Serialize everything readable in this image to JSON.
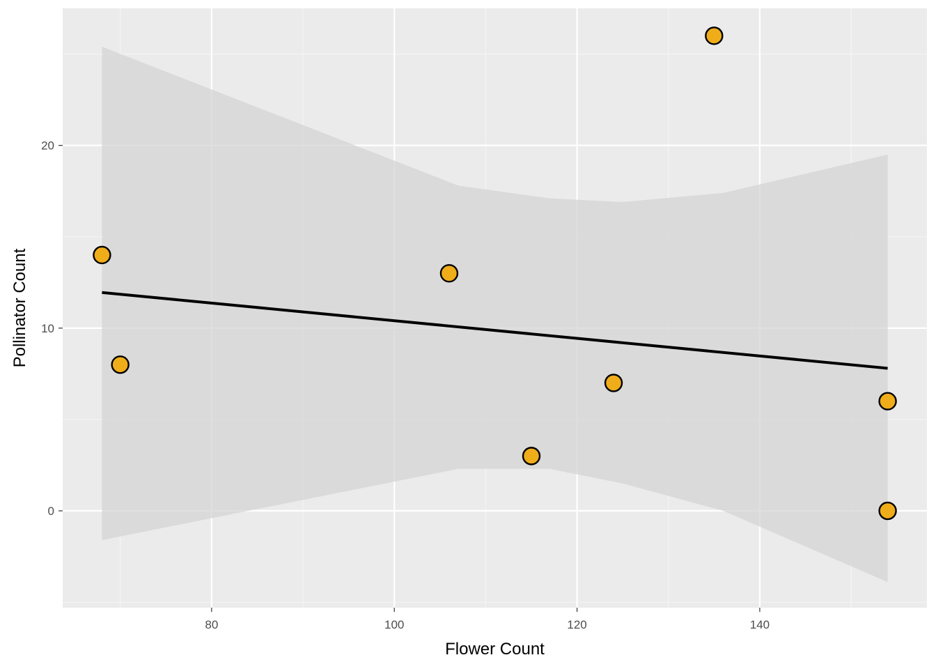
{
  "chart_data": {
    "type": "scatter",
    "title": "",
    "xlabel": "Flower Count",
    "ylabel": "Pollinator Count",
    "xlim": [
      63.7,
      158.3
    ],
    "ylim": [
      -5.3,
      27.5
    ],
    "x_ticks": [
      80,
      100,
      120,
      140
    ],
    "x_minor_ticks": [
      70,
      90,
      110,
      130,
      150
    ],
    "y_ticks": [
      0,
      10,
      20
    ],
    "y_minor_ticks": [
      -5,
      5,
      15,
      25
    ],
    "grid": true,
    "legend": "none",
    "points": [
      {
        "x": 68,
        "y": 14
      },
      {
        "x": 70,
        "y": 8
      },
      {
        "x": 106,
        "y": 13
      },
      {
        "x": 115,
        "y": 3
      },
      {
        "x": 124,
        "y": 7
      },
      {
        "x": 135,
        "y": 26
      },
      {
        "x": 154,
        "y": 6
      },
      {
        "x": 154,
        "y": 0
      }
    ],
    "trend_line": {
      "method": "linear",
      "x": [
        68,
        154
      ],
      "y": [
        11.95,
        7.8
      ]
    },
    "confidence_band": {
      "x": [
        68,
        107,
        117,
        125,
        136,
        154
      ],
      "upper": [
        25.4,
        17.8,
        17.1,
        16.9,
        17.4,
        19.5
      ],
      "lower": [
        -1.6,
        2.3,
        2.3,
        1.5,
        0.0,
        -3.9
      ]
    },
    "colors": {
      "panel_background": "#ebebeb",
      "grid_major": "#ffffff",
      "grid_minor": "#f5f5f5",
      "point_fill": "#f0ad1a",
      "point_stroke": "#000000",
      "trend_line": "#000000",
      "confidence_band": "#d4d4d4"
    }
  }
}
